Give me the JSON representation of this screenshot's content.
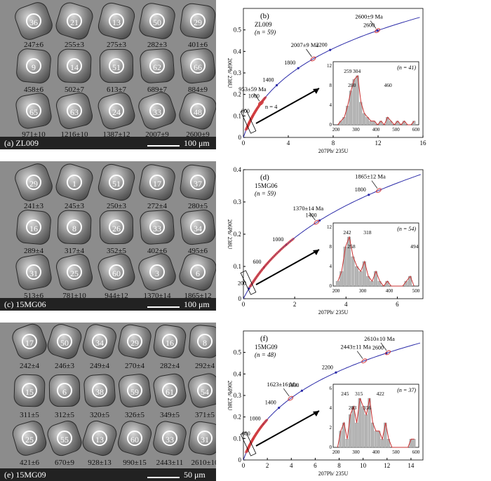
{
  "panels": [
    {
      "id": "a",
      "label": "(a)  ZL009",
      "scale": "100 μm",
      "grains": [
        {
          "spot": "36",
          "age": "247±6"
        },
        {
          "spot": "21",
          "age": "255±3"
        },
        {
          "spot": "13",
          "age": "275±3"
        },
        {
          "spot": "50",
          "age": "282±3"
        },
        {
          "spot": "29",
          "age": "401±6"
        },
        {
          "spot": "9",
          "age": "458±6"
        },
        {
          "spot": "14",
          "age": "502±7"
        },
        {
          "spot": "51",
          "age": "613±7"
        },
        {
          "spot": "62",
          "age": "689±7"
        },
        {
          "spot": "66",
          "age": "884±9"
        },
        {
          "spot": "65",
          "age": "971±10"
        },
        {
          "spot": "63",
          "age": "1216±10"
        },
        {
          "spot": "24",
          "age": "1387±12"
        },
        {
          "spot": "33",
          "age": "2007±9"
        },
        {
          "spot": "48",
          "age": "2600±9"
        }
      ]
    },
    {
      "id": "c",
      "label": "(c)  15MG06",
      "scale": "100 μm",
      "grains": [
        {
          "spot": "29",
          "age": "241±3"
        },
        {
          "spot": "1",
          "age": "245±3"
        },
        {
          "spot": "51",
          "age": "250±3"
        },
        {
          "spot": "17",
          "age": "272±4"
        },
        {
          "spot": "37",
          "age": "280±5"
        },
        {
          "spot": "16",
          "age": "289±4"
        },
        {
          "spot": "8",
          "age": "317±4"
        },
        {
          "spot": "26",
          "age": "352±5"
        },
        {
          "spot": "33",
          "age": "402±6"
        },
        {
          "spot": "34",
          "age": "495±6"
        },
        {
          "spot": "31",
          "age": "513±6"
        },
        {
          "spot": "25",
          "age": "781±10"
        },
        {
          "spot": "60",
          "age": "944±12"
        },
        {
          "spot": "3",
          "age": "1370±14"
        },
        {
          "spot": "6",
          "age": "1865±12"
        }
      ]
    },
    {
      "id": "e",
      "label": "(e)  15MG09",
      "scale": "50 μm",
      "grains": [
        {
          "spot": "17",
          "age": "242±4"
        },
        {
          "spot": "50",
          "age": "246±3"
        },
        {
          "spot": "34",
          "age": "249±4"
        },
        {
          "spot": "29",
          "age": "270±4"
        },
        {
          "spot": "16",
          "age": "282±4"
        },
        {
          "spot": "8",
          "age": "292±4"
        },
        {
          "spot": "15",
          "age": "311±5"
        },
        {
          "spot": "6",
          "age": "312±5"
        },
        {
          "spot": "38",
          "age": "320±5"
        },
        {
          "spot": "59",
          "age": "326±5"
        },
        {
          "spot": "61",
          "age": "349±5"
        },
        {
          "spot": "54",
          "age": "371±5"
        },
        {
          "spot": "25",
          "age": "421±6"
        },
        {
          "spot": "55",
          "age": "670±9"
        },
        {
          "spot": "13",
          "age": "928±13"
        },
        {
          "spot": "60",
          "age": "990±15"
        },
        {
          "spot": "33",
          "age": "2443±11"
        },
        {
          "spot": "31",
          "age": "2610±10"
        }
      ]
    }
  ],
  "chart_data": [
    {
      "type": "scatter",
      "panel": "(b)",
      "sample": "ZL009",
      "n": "(n = 59)",
      "xlabel": "207Pb/ 235U",
      "ylabel": "206Pb/ 238U",
      "xlim": [
        0,
        16
      ],
      "ylim": [
        0,
        0.6
      ],
      "xticks": [
        "0",
        "4",
        "8",
        "12",
        "16"
      ],
      "yticks": [
        "0",
        "0.1",
        "0.2",
        "0.3",
        "0.4",
        "0.5"
      ],
      "concordia_ages": [
        "600",
        "1000",
        "1400",
        "1800",
        "2200",
        "2600"
      ],
      "annotations": [
        "2600±9 Ma",
        "2007±9 Ma",
        "953±59 Ma",
        "n = 4"
      ],
      "inset": {
        "n": "(n = 41)",
        "xticks": [
          "200",
          "300",
          "400",
          "500",
          "600"
        ],
        "yticks": [
          "0",
          "4",
          "8",
          "12"
        ],
        "peaks": [
          "259",
          "280",
          "304",
          "460"
        ]
      }
    },
    {
      "type": "scatter",
      "panel": "(d)",
      "sample": "15MG06",
      "n": "(n = 59)",
      "xlabel": "207Pb/ 235U",
      "ylabel": "206Pb/ 238U",
      "xlim": [
        0,
        7
      ],
      "ylim": [
        0,
        0.4
      ],
      "xticks": [
        "0",
        "2",
        "4",
        "6"
      ],
      "yticks": [
        "0",
        "0.1",
        "0.2",
        "0.3",
        "0.4"
      ],
      "concordia_ages": [
        "200",
        "600",
        "1000",
        "1400",
        "1800"
      ],
      "annotations": [
        "1865±12 Ma",
        "1370±14 Ma"
      ],
      "inset": {
        "n": "(n = 54)",
        "xticks": [
          "200",
          "300",
          "400",
          "500"
        ],
        "yticks": [
          "0",
          "4",
          "8",
          "12"
        ],
        "peaks": [
          "242",
          "258",
          "318",
          "494"
        ]
      }
    },
    {
      "type": "scatter",
      "panel": "(f)",
      "sample": "15MG09",
      "n": "(n = 48)",
      "xlabel": "207Pb/ 235U",
      "ylabel": "206Pb/ 238U",
      "xlim": [
        0,
        15
      ],
      "ylim": [
        0,
        0.6
      ],
      "xticks": [
        "0",
        "2",
        "4",
        "6",
        "8",
        "10",
        "12",
        "14"
      ],
      "yticks": [
        "0",
        "0.1",
        "0.2",
        "0.3",
        "0.4",
        "0.5"
      ],
      "concordia_ages": [
        "600",
        "1000",
        "1400",
        "1800",
        "2200",
        "2600"
      ],
      "annotations": [
        "2610±10 Ma",
        "2443±11 Ma",
        "1623±16 Ma"
      ],
      "inset": {
        "n": "(n = 37)",
        "xticks": [
          "200",
          "300",
          "400",
          "500",
          "600"
        ],
        "yticks": [
          "0",
          "2",
          "4",
          "6"
        ],
        "peaks": [
          "245",
          "283",
          "315",
          "356",
          "422"
        ]
      }
    }
  ]
}
